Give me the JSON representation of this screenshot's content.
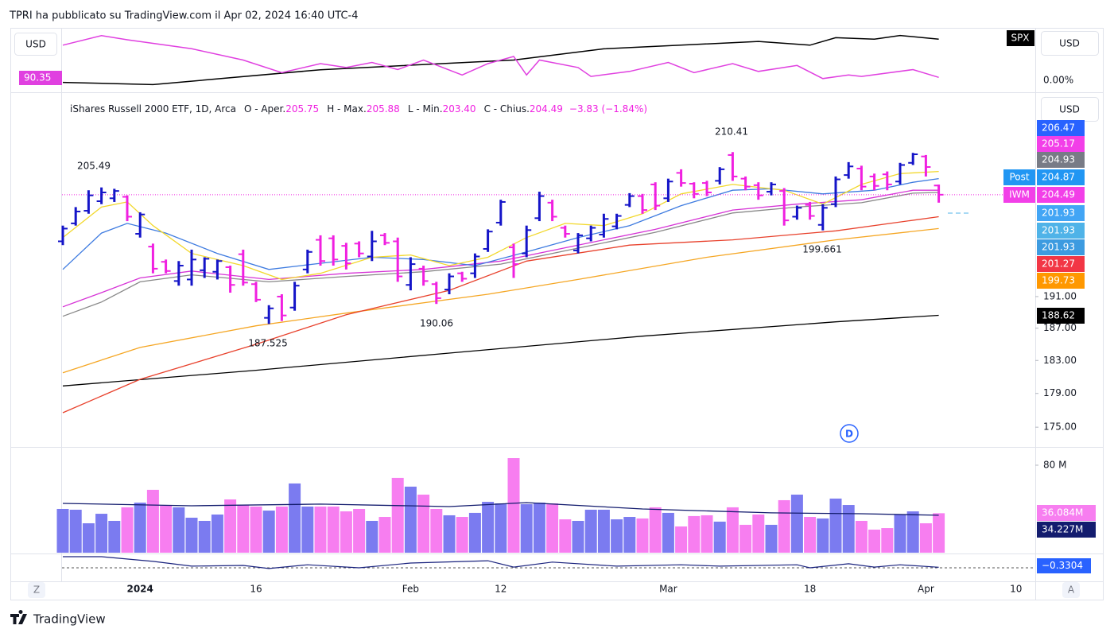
{
  "chart_data": {
    "type": "ohlc",
    "header": "TPRI ha pubblicato su TradingView.com il Apr 02, 2024 16:40 UTC-4",
    "legend": {
      "title": "iShares Russell 2000 ETF, 1D, Arca",
      "o_label": "O - Aper.",
      "o": "205.75",
      "h_label": "H - Max.",
      "h": "205.88",
      "l_label": "L - Min.",
      "l": "203.40",
      "c_label": "C - Chius.",
      "c": "204.49",
      "change": "−3.83 (−1.84%)"
    },
    "currency": "USD",
    "categories": [
      null,
      null,
      null,
      null,
      null,
      null,
      "2024",
      null,
      null,
      null,
      null,
      null,
      null,
      null,
      null,
      "16",
      null,
      null,
      null,
      null,
      null,
      null,
      null,
      null,
      null,
      null,
      null,
      "Feb",
      null,
      null,
      null,
      null,
      null,
      null,
      "12",
      null,
      null,
      null,
      null,
      null,
      null,
      null,
      null,
      null,
      null,
      null,
      null,
      "Mar",
      null,
      null,
      null,
      null,
      null,
      null,
      null,
      null,
      null,
      null,
      "18",
      null,
      null,
      null,
      null,
      null,
      null,
      null,
      null,
      "Apr",
      null,
      null,
      null,
      null,
      null,
      null,
      "10",
      null
    ],
    "open": [
      198.2,
      200.6,
      202.3,
      203.6,
      204.0,
      204.2,
      199.2,
      197.5,
      195.5,
      193.0,
      193.2,
      194.4,
      194.2,
      194.8,
      196.5,
      192.6,
      188.3,
      191.0,
      189.6,
      194.5,
      198.4,
      198.6,
      197.6,
      197.9,
      196.2,
      199.0,
      198.2,
      192.5,
      194.6,
      192.6,
      191.9,
      194.0,
      194.0,
      197.2,
      200.7,
      197.4,
      196.6,
      201.3,
      203.4,
      200.0,
      197.0,
      198.6,
      199.1,
      200.2,
      203.1,
      204.3,
      205.9,
      204.0,
      207.5,
      206.0,
      206.1,
      206.4,
      210.0,
      206.7,
      205.8,
      204.9,
      205.0,
      201.5,
      203.1,
      200.4,
      203.2,
      207.2,
      208.1,
      207.0,
      207.3,
      206.3,
      208.9,
      209.8,
      205.75,
      null,
      null,
      null,
      null,
      null,
      null,
      null
    ],
    "high": [
      200.3,
      202.8,
      205.1,
      205.49,
      205.3,
      204.4,
      202.1,
      197.9,
      195.8,
      195.6,
      197.1,
      196.1,
      195.8,
      195.0,
      197.1,
      192.9,
      189.9,
      191.3,
      192.9,
      197.1,
      199.0,
      199.0,
      198.0,
      198.2,
      199.6,
      199.3,
      198.7,
      196.1,
      195.0,
      192.9,
      194.0,
      194.2,
      196.6,
      199.8,
      203.8,
      197.9,
      200.3,
      204.9,
      203.8,
      200.3,
      199.3,
      200.3,
      201.9,
      201.9,
      204.7,
      204.6,
      206.2,
      206.7,
      208.0,
      206.2,
      206.4,
      208.3,
      210.41,
      207.0,
      206.2,
      206.2,
      205.4,
      203.0,
      203.5,
      203.2,
      207.0,
      209.0,
      208.5,
      207.4,
      207.7,
      208.9,
      210.3,
      210.0,
      205.88,
      null,
      null,
      null,
      null,
      null,
      null,
      null
    ],
    "low": [
      197.7,
      200.3,
      201.9,
      203.2,
      203.5,
      200.9,
      198.7,
      194.0,
      194.0,
      192.4,
      192.4,
      193.4,
      193.2,
      191.5,
      192.4,
      190.3,
      187.525,
      187.9,
      189.2,
      194.0,
      195.0,
      195.0,
      194.5,
      196.1,
      195.6,
      197.7,
      192.9,
      191.8,
      192.4,
      190.06,
      191.3,
      192.9,
      193.4,
      196.8,
      200.3,
      193.4,
      196.1,
      200.9,
      200.9,
      198.7,
      196.6,
      198.2,
      198.7,
      199.8,
      202.8,
      201.9,
      202.4,
      203.5,
      205.6,
      204.0,
      204.3,
      205.9,
      206.4,
      205.1,
      203.8,
      204.4,
      200.3,
      201.1,
      201.1,
      199.661,
      202.8,
      206.7,
      205.1,
      205.1,
      205.1,
      205.9,
      208.6,
      207.0,
      203.4,
      null,
      null,
      null,
      null,
      null,
      null,
      null
    ],
    "close": [
      199.9,
      202.2,
      204.4,
      204.8,
      205.0,
      201.5,
      201.8,
      194.6,
      194.3,
      195.0,
      195.8,
      195.9,
      195.6,
      192.5,
      192.8,
      190.6,
      189.5,
      188.6,
      192.4,
      196.8,
      195.6,
      195.8,
      195.3,
      196.6,
      198.2,
      198.0,
      193.6,
      195.2,
      193.0,
      190.8,
      193.6,
      193.3,
      196.2,
      199.5,
      203.5,
      195.2,
      199.7,
      204.3,
      201.5,
      199.2,
      199.0,
      200.0,
      201.2,
      201.6,
      204.3,
      202.4,
      203.0,
      206.3,
      206.1,
      204.6,
      204.8,
      208.0,
      207.0,
      205.6,
      204.4,
      205.9,
      201.0,
      202.7,
      201.6,
      202.7,
      206.6,
      208.4,
      205.6,
      205.7,
      205.9,
      208.6,
      210.1,
      208.32,
      204.49,
      null,
      null,
      null,
      null,
      null,
      null,
      null
    ],
    "up_color": "#1414c8",
    "down_color": "#f020e0",
    "ylim": [
      172.7,
      218.9
    ],
    "log_scale": true,
    "yticks": [
      {
        "value": 175,
        "label": "175.00"
      },
      {
        "value": 179,
        "label": "179.00"
      },
      {
        "value": 183,
        "label": "183.00"
      },
      {
        "value": 187,
        "label": "187.00"
      },
      {
        "value": 191,
        "label": "191.00"
      }
    ],
    "ma_lines": [
      {
        "color": "#000000",
        "x": [
          0,
          15,
          30,
          45,
          60,
          68
        ],
        "values": [
          179.9,
          181.8,
          183.9,
          186.0,
          187.8,
          188.62
        ]
      },
      {
        "color": "#f5a623",
        "x": [
          0,
          6,
          15,
          22,
          33,
          40,
          50,
          60,
          68
        ],
        "values": [
          181.5,
          184.6,
          187.3,
          188.9,
          191.3,
          193.2,
          196.1,
          198.4,
          199.9
        ]
      },
      {
        "color": "#e8412c",
        "x": [
          0,
          6,
          15,
          22,
          30,
          36,
          44,
          52,
          60,
          68
        ],
        "values": [
          176.7,
          180.7,
          185.0,
          188.7,
          191.8,
          195.6,
          197.7,
          198.4,
          199.6,
          201.5
        ]
      },
      {
        "color": "#888888",
        "x": [
          0,
          3,
          6,
          10,
          16,
          22,
          28,
          34,
          40,
          46,
          52,
          57,
          62,
          66,
          68
        ],
        "values": [
          188.5,
          190.3,
          192.9,
          193.8,
          192.9,
          193.6,
          194.2,
          195.2,
          197.3,
          199.4,
          202.0,
          202.8,
          203.4,
          204.7,
          204.8
        ]
      },
      {
        "color": "#d633d6",
        "x": [
          0,
          3,
          6,
          10,
          16,
          22,
          28,
          34,
          40,
          46,
          52,
          57,
          62,
          66,
          68
        ],
        "values": [
          189.7,
          191.5,
          193.4,
          194.3,
          193.2,
          194.0,
          194.5,
          195.6,
          197.7,
          199.8,
          202.4,
          203.2,
          203.8,
          205.1,
          205.1
        ]
      },
      {
        "color": "#3e7be0",
        "x": [
          0,
          3,
          5,
          8,
          12,
          16,
          20,
          24,
          28,
          32,
          36,
          40,
          44,
          48,
          52,
          55,
          59,
          63,
          66,
          68
        ],
        "values": [
          194.5,
          199.3,
          200.6,
          199.3,
          196.6,
          194.5,
          195.3,
          196.1,
          195.8,
          195.0,
          196.8,
          198.7,
          200.3,
          203.0,
          205.1,
          205.3,
          204.6,
          205.1,
          206.2,
          206.7
        ]
      },
      {
        "color": "#f2d82c",
        "x": [
          0,
          3,
          5,
          7,
          10,
          14,
          17,
          20,
          24,
          27,
          30,
          33,
          36,
          39,
          42,
          45,
          48,
          52,
          56,
          59,
          62,
          65,
          68
        ],
        "values": [
          198.7,
          202.8,
          203.5,
          200.3,
          196.6,
          195.0,
          193.2,
          194.0,
          196.1,
          196.4,
          195.0,
          196.1,
          198.7,
          200.6,
          200.3,
          201.9,
          204.6,
          205.9,
          205.1,
          203.2,
          205.9,
          207.4,
          207.7
        ]
      }
    ],
    "scale_labels": [
      {
        "value": 206.47,
        "color": "#2962ff"
      },
      {
        "value": 205.17,
        "color": "#f23fe8"
      },
      {
        "value": 204.93,
        "color": "#787b86"
      },
      {
        "tag": "Post",
        "value": 204.87,
        "color": "#2196f3"
      },
      {
        "tag": "IWM",
        "value": 204.49,
        "color": "#f23fe8"
      },
      {
        "value": 201.93,
        "color": "#42a5f5"
      },
      {
        "value": 201.93,
        "color": "#4fb3e8"
      },
      {
        "value": 201.93,
        "color": "#3d9be0"
      },
      {
        "value": 201.27,
        "color": "#f23645"
      },
      {
        "value": 199.73,
        "color": "#ff9800"
      },
      {
        "value": 188.62,
        "color": "#000000"
      }
    ],
    "annotations": [
      "205.49",
      "210.41",
      "187.525",
      "190.06",
      "199.661"
    ],
    "compare": {
      "symbol": "SPX",
      "left_label": "90.35",
      "right_label": "0.00%",
      "ylim": [
        0,
        100
      ],
      "series": [
        {
          "color": "#000000",
          "x": [
            0,
            7,
            20,
            35,
            42,
            54,
            58,
            60,
            63,
            65,
            68
          ],
          "values": [
            12.5,
            8.75,
            33.75,
            50,
            68.75,
            81.25,
            75,
            87.5,
            85,
            91.25,
            85
          ]
        },
        {
          "color": "#e040e0",
          "x": [
            0,
            3,
            5,
            10,
            14,
            17,
            20,
            22,
            24,
            26,
            28,
            31,
            33,
            35,
            36,
            37,
            40,
            41,
            44,
            47,
            49,
            52,
            54,
            57,
            59,
            61,
            62,
            66,
            68
          ],
          "values": [
            75,
            91,
            84,
            69,
            50,
            29,
            44,
            37.5,
            46,
            34,
            50,
            25,
            44,
            56,
            25,
            50,
            37.5,
            22.5,
            31,
            46,
            29,
            44,
            31,
            41,
            19,
            25,
            22.5,
            34,
            21
          ]
        }
      ]
    },
    "volume": {
      "values": [
        40,
        39.3,
        26.9,
        35.6,
        29.1,
        41.5,
        45.8,
        57.5,
        42.9,
        41.5,
        32,
        29.1,
        34.9,
        48.7,
        43.6,
        42.2,
        38.5,
        42.2,
        63.3,
        42.2,
        42.2,
        42.2,
        37.8,
        40,
        29.1,
        32.7,
        68.4,
        60.4,
        53.1,
        40,
        34.2,
        32.7,
        36.4,
        46.5,
        45.1,
        86.5,
        44.4,
        45.8,
        45.1,
        30.5,
        29.1,
        39.3,
        39.3,
        30.5,
        32.7,
        31.3,
        41.5,
        36.4,
        24,
        33.5,
        34.2,
        28.4,
        41.5,
        25.5,
        34.9,
        25.5,
        48,
        53.1,
        32.7,
        31.3,
        49.5,
        43.6,
        29.1,
        21.1,
        22.5,
        34.9,
        37.8,
        26.9,
        36.084,
        null,
        null,
        null,
        null,
        null,
        null,
        null
      ],
      "ylim": [
        0,
        96.7
      ],
      "yticks": [
        {
          "value": 80,
          "label": "80 M"
        }
      ],
      "up_color": "#7b7bf0",
      "down_color": "#f77ef0",
      "ma": {
        "color": "#131c6e",
        "x": [
          0,
          10,
          20,
          30,
          36,
          45,
          55,
          62,
          68
        ],
        "values": [
          45.1,
          42.9,
          44.4,
          42.2,
          45.8,
          40,
          36.4,
          35.6,
          34.227
        ]
      },
      "labels": [
        {
          "label": "36.084M",
          "color": "#f77ef0"
        },
        {
          "label": "34.227M",
          "color": "#131c6e"
        }
      ]
    },
    "oscillator": {
      "ylim": [
        -4.5,
        3.5
      ],
      "color": "#1a237e",
      "x": [
        0,
        3,
        7,
        10,
        14,
        16,
        19,
        23,
        27,
        33,
        35,
        38,
        43,
        48,
        51,
        57,
        58,
        61,
        63,
        65,
        68
      ],
      "values": [
        2.8,
        2.8,
        1.4,
        0,
        0.2,
        -0.7,
        0.4,
        -0.5,
        0.9,
        1.6,
        -0.3,
        1.2,
        0,
        0.4,
        0,
        0.4,
        -0.5,
        0.7,
        -0.3,
        0.4,
        -0.3304
      ],
      "label": "−0.3304"
    },
    "ui": {
      "z": "Z",
      "a": "A",
      "d": "D",
      "brand": "TradingView"
    }
  }
}
